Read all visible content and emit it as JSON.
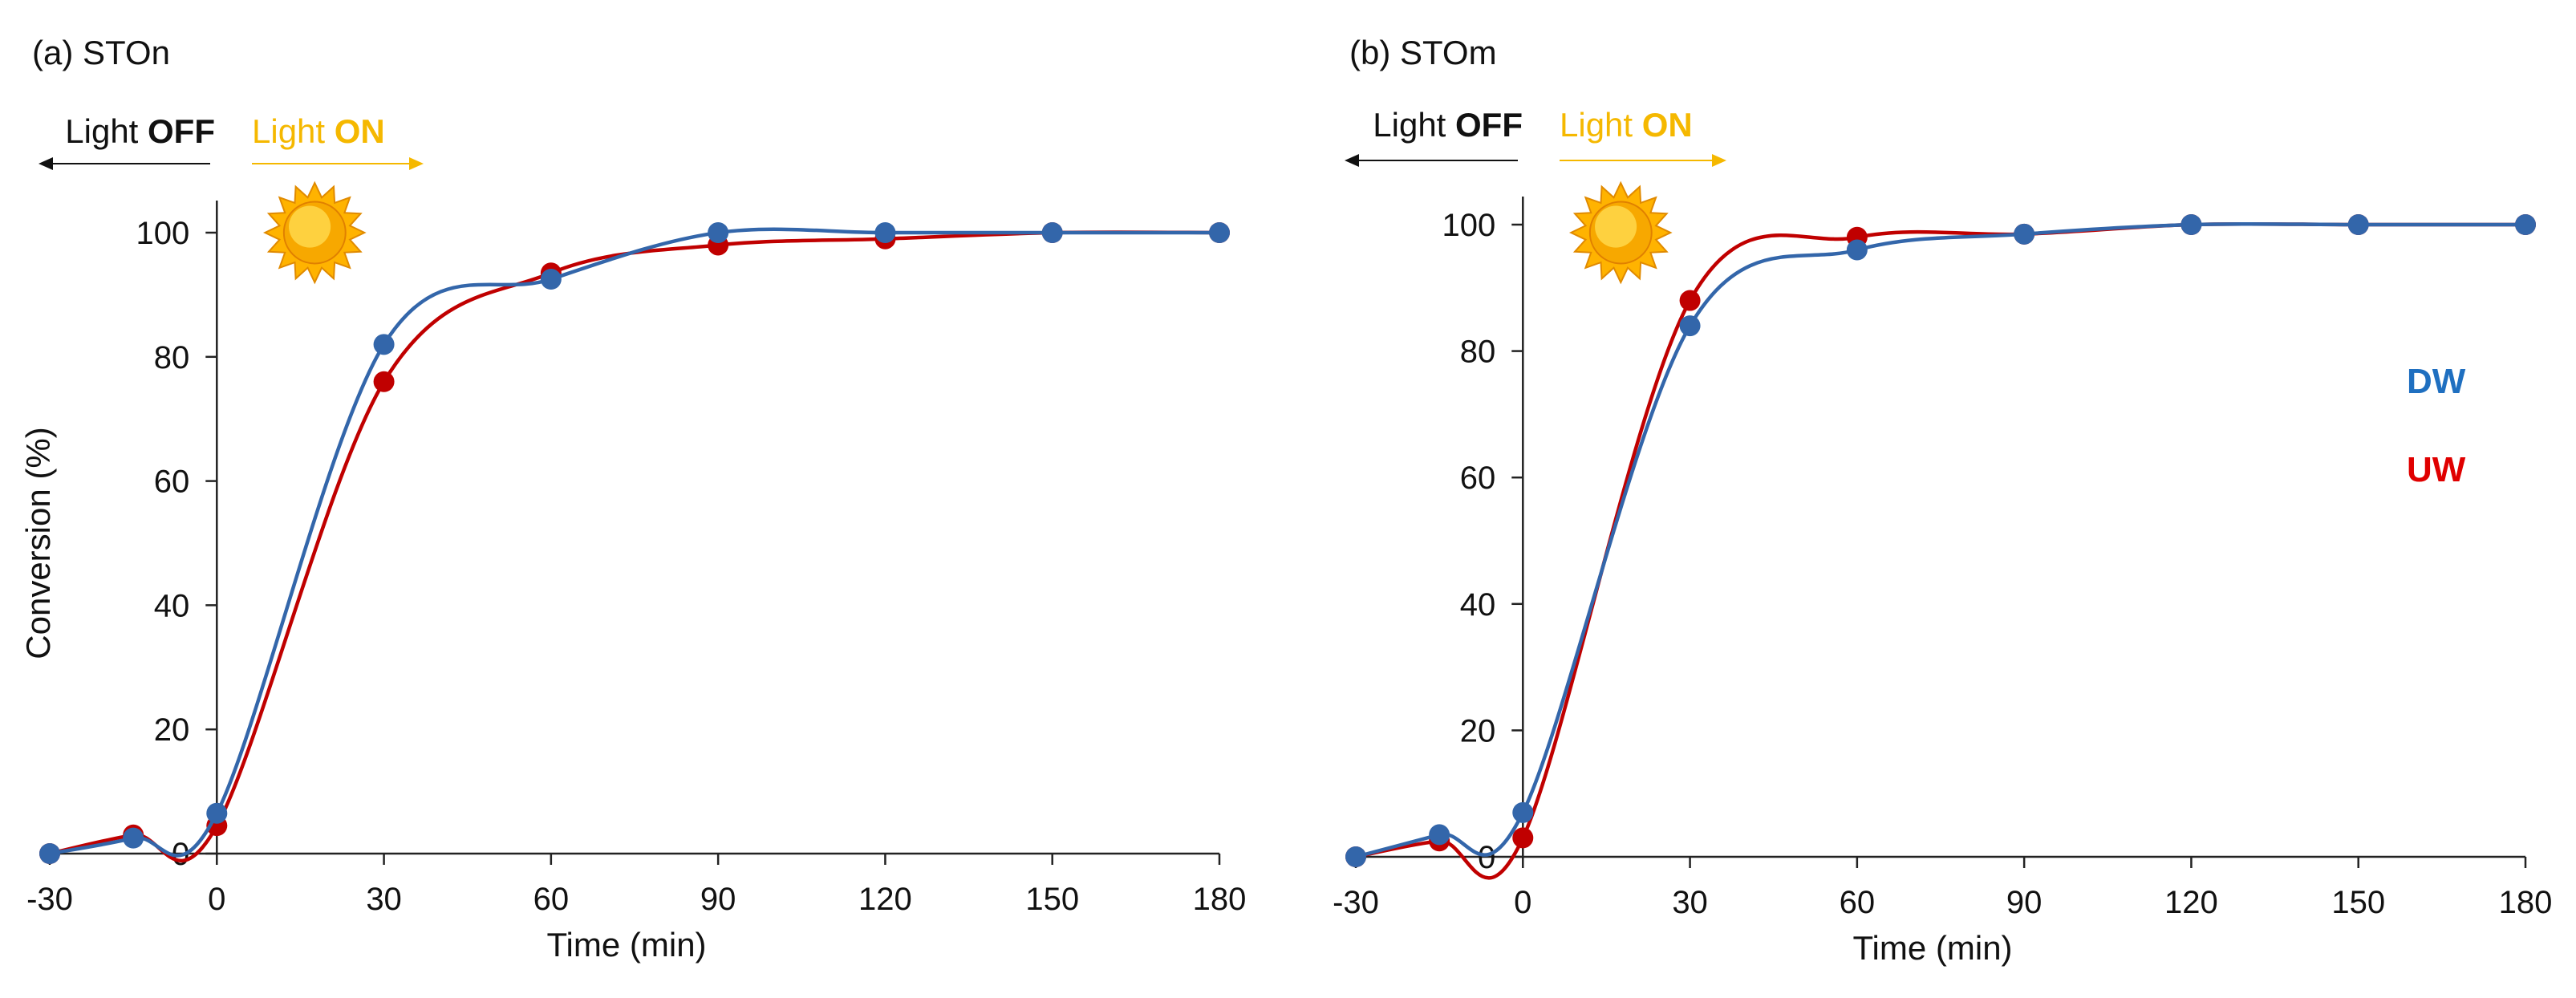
{
  "figure": {
    "colors": {
      "dw": "#3366aa",
      "uw": "#c00000",
      "legend_dw": "#1f6fc0",
      "legend_uw": "#e00000",
      "light_on": "#f5b800",
      "axis": "#222222"
    }
  },
  "chart_data": [
    {
      "type": "line",
      "panel_label": "(a) STOn",
      "xlabel": "Time (min)",
      "ylabel": "Conversion (%)",
      "xlim": [
        -30,
        180
      ],
      "ylim": [
        0,
        100
      ],
      "xticks": [
        -30,
        0,
        30,
        60,
        90,
        120,
        150,
        180
      ],
      "xtick_labels": [
        "-30",
        "0",
        "30",
        "60",
        "90",
        "120",
        "150",
        "180"
      ],
      "yticks": [
        0,
        20,
        40,
        60,
        80,
        100
      ],
      "ytick_labels": [
        "0",
        "20",
        "40",
        "60",
        "80",
        "100"
      ],
      "light_off_label": {
        "prefix": "Light ",
        "bold": "OFF"
      },
      "light_on_label": {
        "prefix": "Light ",
        "bold": "ON"
      },
      "legend": null,
      "series": [
        {
          "name": "UW",
          "x": [
            -30,
            -15,
            0,
            30,
            60,
            90,
            120,
            150,
            180
          ],
          "values": [
            0,
            3,
            4.5,
            76,
            93.5,
            98,
            99,
            100,
            100
          ]
        },
        {
          "name": "DW",
          "x": [
            -30,
            -15,
            0,
            30,
            60,
            90,
            120,
            150,
            180
          ],
          "values": [
            0,
            2.5,
            6.5,
            82,
            92.5,
            100,
            100,
            100,
            100
          ]
        }
      ]
    },
    {
      "type": "line",
      "panel_label": "(b) STOm",
      "xlabel": "Time (min)",
      "ylabel": "",
      "xlim": [
        -30,
        180
      ],
      "ylim": [
        0,
        100
      ],
      "xticks": [
        -30,
        0,
        30,
        60,
        90,
        120,
        150,
        180
      ],
      "xtick_labels": [
        "-30",
        "0",
        "30",
        "60",
        "90",
        "120",
        "150",
        "180"
      ],
      "yticks": [
        0,
        20,
        40,
        60,
        80,
        100
      ],
      "ytick_labels": [
        "0",
        "20",
        "40",
        "60",
        "80",
        "100"
      ],
      "light_off_label": {
        "prefix": "Light ",
        "bold": "OFF"
      },
      "light_on_label": {
        "prefix": "Light ",
        "bold": "ON"
      },
      "legend": [
        "DW",
        "UW"
      ],
      "series": [
        {
          "name": "UW",
          "x": [
            -30,
            -15,
            0,
            30,
            60,
            90,
            120,
            150,
            180
          ],
          "values": [
            0,
            2.5,
            3,
            88,
            98,
            98.5,
            100,
            100,
            100
          ]
        },
        {
          "name": "DW",
          "x": [
            -30,
            -15,
            0,
            30,
            60,
            90,
            120,
            150,
            180
          ],
          "values": [
            0,
            3.5,
            7,
            84,
            96,
            98.5,
            100,
            100,
            100
          ]
        }
      ]
    }
  ]
}
